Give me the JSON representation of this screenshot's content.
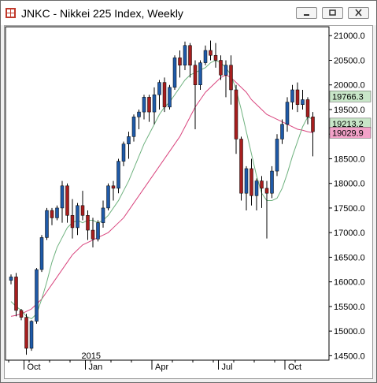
{
  "window": {
    "title": "JNKC - Nikkei 225 Index, Weekly",
    "controls": [
      "minimize",
      "restore",
      "close"
    ]
  },
  "chart_data": {
    "type": "candlestick",
    "symbol": "JNKC",
    "title": "JNKC - Nikkei 225 Index, Weekly",
    "timeframe": "Weekly",
    "y_ticks": [
      14500,
      15000,
      15500,
      16000,
      16500,
      17000,
      17500,
      18000,
      18500,
      19000,
      19500,
      20000,
      20500,
      21000
    ],
    "y_tick_labels": [
      "14500.0",
      "15000.0",
      "15500.0",
      "16000.0",
      "16500.0",
      "17000.0",
      "17500.0",
      "18000.0",
      "18500.0",
      "19000.0",
      "19500.0",
      "20000.0",
      "20500.0",
      "21000.0"
    ],
    "ylim": [
      14410,
      21180
    ],
    "x_labels": [
      {
        "label": "Oct",
        "index": 3
      },
      {
        "label": "Jan",
        "index": 15
      },
      {
        "label": "Apr",
        "index": 28
      },
      {
        "label": "Jul",
        "index": 41
      },
      {
        "label": "Oct",
        "index": 54
      }
    ],
    "year_label": {
      "label": "2015",
      "index": 15
    },
    "price_tags": [
      {
        "label": "19766.3",
        "value": 19766.3,
        "color": "#c8e6c8"
      },
      {
        "label": "19213.2",
        "value": 19213.2,
        "color": "#c8e6c8"
      },
      {
        "label": "19029.9",
        "value": 19029.9,
        "color": "#f2a2c8"
      }
    ],
    "colors": {
      "up": "#1f5aa8",
      "down": "#a61e1e",
      "wick": "#000000",
      "ma_fast": "#6fb27f",
      "ma_slow": "#d9457e"
    },
    "candles": [
      [
        16030,
        16150,
        15950,
        16100
      ],
      [
        16100,
        16180,
        15300,
        15420
      ],
      [
        15420,
        15450,
        15220,
        15280
      ],
      [
        15280,
        15350,
        14520,
        14650
      ],
      [
        14650,
        15220,
        14600,
        15200
      ],
      [
        15200,
        16280,
        15150,
        16250
      ],
      [
        16250,
        16950,
        16200,
        16900
      ],
      [
        16900,
        17500,
        16850,
        17450
      ],
      [
        17450,
        17500,
        17150,
        17300
      ],
      [
        17300,
        17550,
        17250,
        17500
      ],
      [
        17500,
        18050,
        17200,
        17950
      ],
      [
        17950,
        18000,
        17200,
        17350
      ],
      [
        17350,
        17680,
        16880,
        17100
      ],
      [
        17100,
        17600,
        16950,
        17550
      ],
      [
        17550,
        17850,
        17250,
        17350
      ],
      [
        17350,
        17450,
        16850,
        17050
      ],
      [
        17050,
        17300,
        16700,
        16870
      ],
      [
        16870,
        17250,
        16820,
        17200
      ],
      [
        17200,
        17650,
        17100,
        17500
      ],
      [
        17500,
        18000,
        17450,
        17950
      ],
      [
        17950,
        18050,
        17650,
        17900
      ],
      [
        17900,
        18500,
        17800,
        18450
      ],
      [
        18450,
        18850,
        18350,
        18800
      ],
      [
        18800,
        19050,
        18500,
        18950
      ],
      [
        18950,
        19400,
        18850,
        19350
      ],
      [
        19350,
        19500,
        19100,
        19450
      ],
      [
        19450,
        19800,
        19300,
        19750
      ],
      [
        19750,
        19800,
        19250,
        19450
      ],
      [
        19450,
        19950,
        19200,
        19800
      ],
      [
        19800,
        20100,
        19500,
        20050
      ],
      [
        20050,
        20150,
        19450,
        19550
      ],
      [
        19550,
        20000,
        19500,
        19950
      ],
      [
        19950,
        20600,
        19900,
        20550
      ],
      [
        20550,
        20700,
        20150,
        20400
      ],
      [
        20400,
        20880,
        20300,
        20800
      ],
      [
        20800,
        20850,
        20150,
        20400
      ],
      [
        20400,
        20500,
        19100,
        20000
      ],
      [
        20000,
        20500,
        19900,
        20450
      ],
      [
        20450,
        20800,
        20400,
        20700
      ],
      [
        20700,
        20900,
        20500,
        20600
      ],
      [
        20600,
        20850,
        20350,
        20500
      ],
      [
        20500,
        20600,
        20100,
        20200
      ],
      [
        20200,
        20500,
        19750,
        20400
      ],
      [
        20400,
        20600,
        19600,
        19900
      ],
      [
        19900,
        20000,
        18600,
        18900
      ],
      [
        18900,
        18950,
        17650,
        17800
      ],
      [
        17800,
        18350,
        17450,
        18300
      ],
      [
        18300,
        18500,
        17550,
        17750
      ],
      [
        17750,
        18100,
        17450,
        18050
      ],
      [
        18050,
        18150,
        17500,
        17900
      ],
      [
        17900,
        18050,
        16880,
        17800
      ],
      [
        17800,
        18350,
        17700,
        18250
      ],
      [
        18250,
        19000,
        18150,
        18900
      ],
      [
        18900,
        19300,
        18800,
        19200
      ],
      [
        19200,
        19750,
        19050,
        19650
      ],
      [
        19650,
        20000,
        19500,
        19900
      ],
      [
        19900,
        20050,
        19450,
        19600
      ],
      [
        19600,
        19900,
        19500,
        19700
      ],
      [
        19700,
        19750,
        19200,
        19350
      ],
      [
        19350,
        19450,
        18550,
        19050
      ]
    ],
    "ma_fast": [
      15600,
      15500,
      15420,
      15300,
      15250,
      15350,
      15650,
      16000,
      16400,
      16700,
      16900,
      17100,
      17200,
      17250,
      17200,
      17250,
      17250,
      17200,
      17250,
      17350,
      17500,
      17650,
      17850,
      18050,
      18300,
      18550,
      18800,
      19000,
      19200,
      19400,
      19550,
      19650,
      19800,
      19950,
      20100,
      20200,
      20250,
      20300,
      20350,
      20450,
      20500,
      20450,
      20350,
      20200,
      19900,
      19500,
      19050,
      18600,
      18150,
      17800,
      17650,
      17650,
      17700,
      17900,
      18200,
      18550,
      18850,
      19150,
      19350,
      19300
    ],
    "ma_slow": [
      15300,
      15320,
      15350,
      15400,
      15450,
      15550,
      15650,
      15800,
      15950,
      16100,
      16250,
      16400,
      16550,
      16650,
      16750,
      16800,
      16850,
      16900,
      16950,
      17000,
      17100,
      17200,
      17300,
      17450,
      17600,
      17750,
      17900,
      18050,
      18200,
      18350,
      18500,
      18650,
      18800,
      18950,
      19150,
      19350,
      19550,
      19700,
      19850,
      19950,
      20050,
      20150,
      20200,
      20150,
      20050,
      19950,
      19850,
      19700,
      19600,
      19500,
      19400,
      19350,
      19300,
      19250,
      19200,
      19150,
      19100,
      19080,
      19050,
      19030
    ]
  }
}
